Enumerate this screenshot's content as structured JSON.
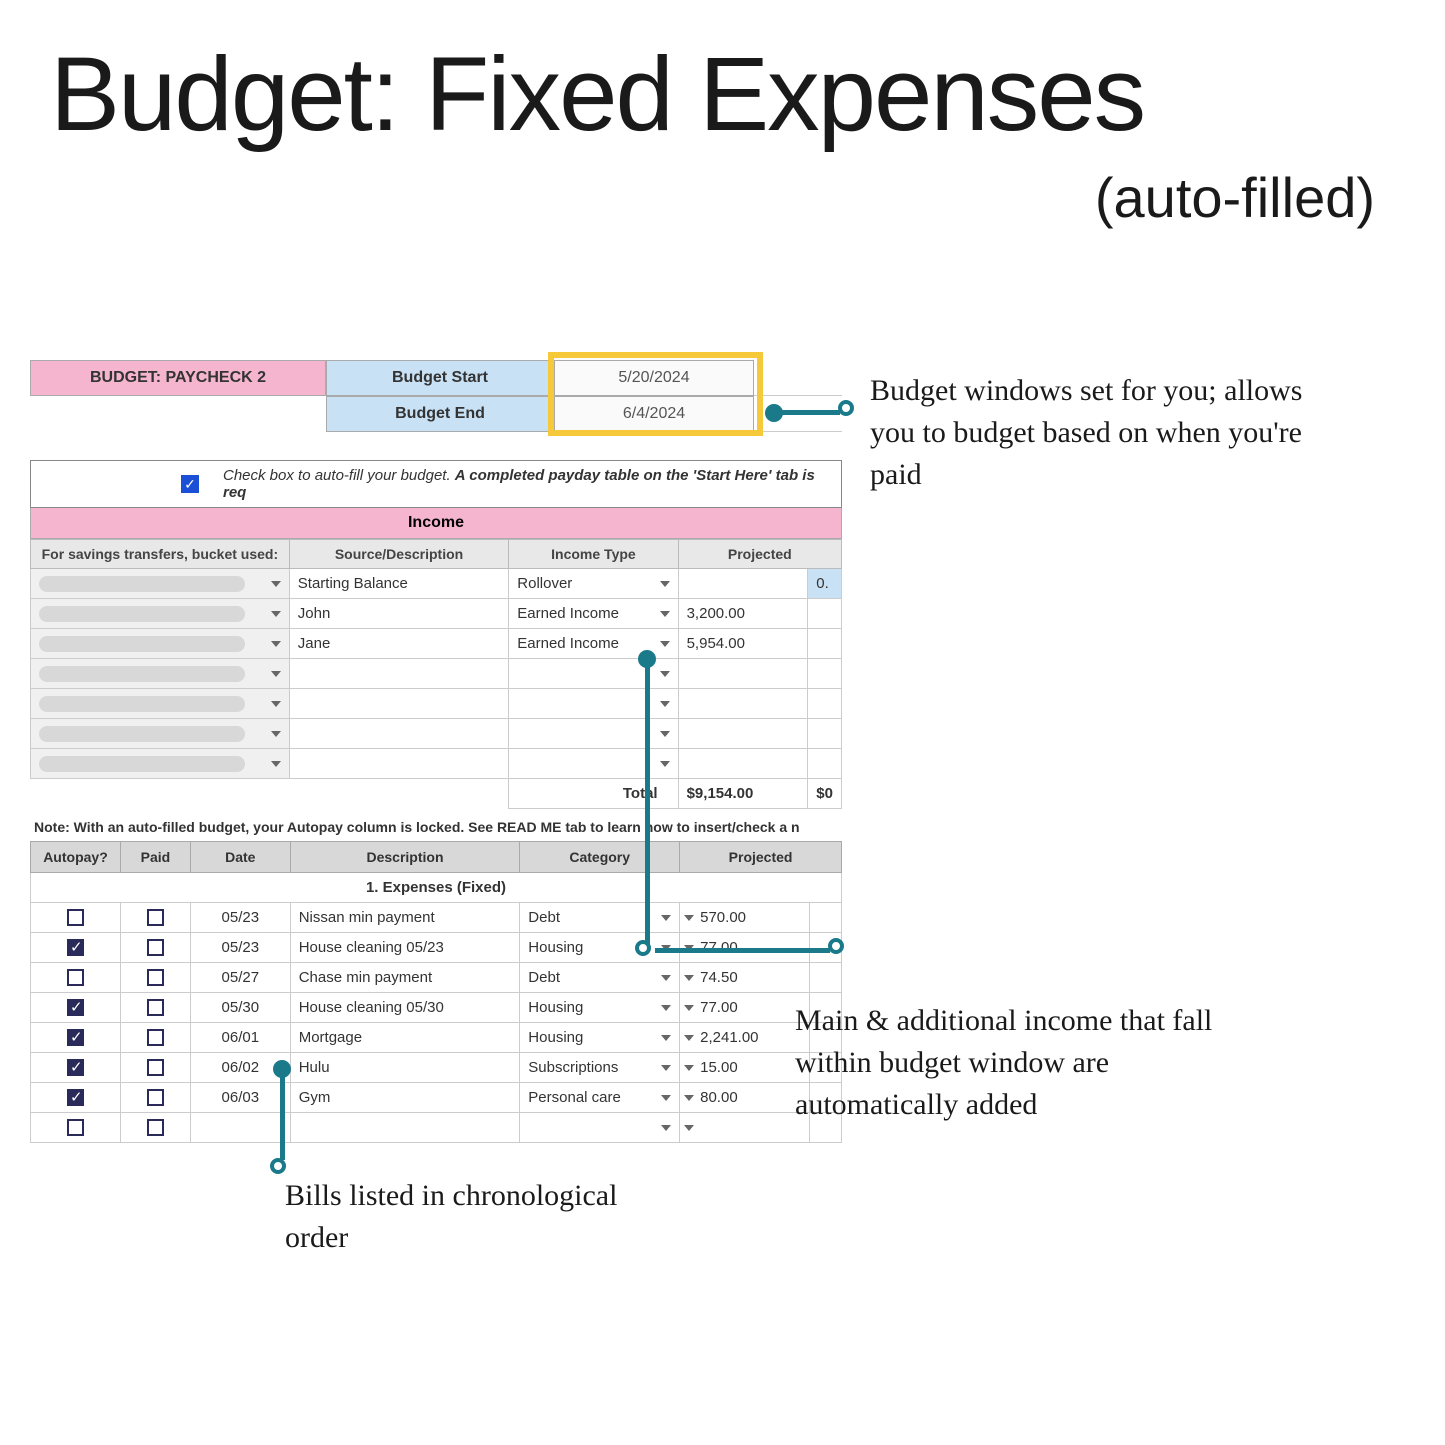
{
  "title": "Budget: Fixed Expenses",
  "subtitle": "(auto-filled)",
  "colors": {
    "pink": "#f5b5ce",
    "blue": "#c8e1f5",
    "yellow": "#f5c93a",
    "teal": "#1a7a8a",
    "checkbox_blue": "#1a4fd6",
    "total_green": "#2a8a4a"
  },
  "budget_header": {
    "paycheck_label": "BUDGET: PAYCHECK 2",
    "start_label": "Budget Start",
    "start_date": "5/20/2024",
    "end_label": "Budget End",
    "end_date": "6/4/2024"
  },
  "autofill": {
    "checked": true,
    "text_prefix": "Check box to auto-fill your budget. ",
    "text_bold": "A completed payday table on the 'Start Here' tab is req"
  },
  "income": {
    "header": "Income",
    "columns": {
      "bucket": "For savings transfers, bucket used:",
      "source": "Source/Description",
      "type": "Income Type",
      "projected": "Projected"
    },
    "rows": [
      {
        "source": "Starting Balance",
        "type": "Rollover",
        "projected": "",
        "right": "0."
      },
      {
        "source": "John",
        "type": "Earned Income",
        "projected": "3,200.00",
        "right": ""
      },
      {
        "source": "Jane",
        "type": "Earned Income",
        "projected": "5,954.00",
        "right": ""
      },
      {
        "source": "",
        "type": "",
        "projected": "",
        "right": ""
      },
      {
        "source": "",
        "type": "",
        "projected": "",
        "right": ""
      },
      {
        "source": "",
        "type": "",
        "projected": "",
        "right": ""
      },
      {
        "source": "",
        "type": "",
        "projected": "",
        "right": ""
      }
    ],
    "total_label": "Total",
    "total_value": "$9,154.00",
    "total_right": "$0"
  },
  "note": "Note: With an auto-filled budget, your Autopay column is locked. See READ ME tab to learn how to insert/check a n",
  "expenses": {
    "columns": {
      "autopay": "Autopay?",
      "paid": "Paid",
      "date": "Date",
      "desc": "Description",
      "cat": "Category",
      "proj": "Projected"
    },
    "section_label": "1. Expenses (Fixed)",
    "rows": [
      {
        "auto": false,
        "paid": false,
        "date": "05/23",
        "desc": "Nissan min payment",
        "cat": "Debt",
        "proj": "570.00"
      },
      {
        "auto": true,
        "paid": false,
        "date": "05/23",
        "desc": "House cleaning 05/23",
        "cat": "Housing",
        "proj": "77.00"
      },
      {
        "auto": false,
        "paid": false,
        "date": "05/27",
        "desc": "Chase min payment",
        "cat": "Debt",
        "proj": "74.50"
      },
      {
        "auto": true,
        "paid": false,
        "date": "05/30",
        "desc": "House cleaning 05/30",
        "cat": "Housing",
        "proj": "77.00"
      },
      {
        "auto": true,
        "paid": false,
        "date": "06/01",
        "desc": "Mortgage",
        "cat": "Housing",
        "proj": "2,241.00"
      },
      {
        "auto": true,
        "paid": false,
        "date": "06/02",
        "desc": "Hulu",
        "cat": "Subscriptions",
        "proj": "15.00"
      },
      {
        "auto": true,
        "paid": false,
        "date": "06/03",
        "desc": "Gym",
        "cat": "Personal care",
        "proj": "80.00"
      },
      {
        "auto": false,
        "paid": false,
        "date": "",
        "desc": "",
        "cat": "",
        "proj": ""
      }
    ]
  },
  "annotations": {
    "a1": "Budget windows set for you; allows you to budget based on when you're paid",
    "a2": "Bills listed in chronological order",
    "a3": "Main & additional income that fall within budget window are automatically added"
  }
}
